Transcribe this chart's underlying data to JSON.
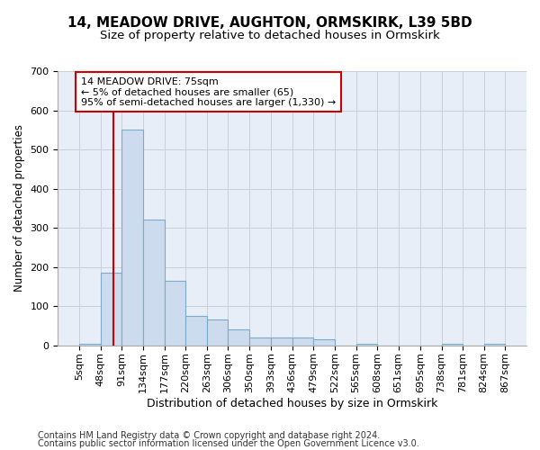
{
  "title1": "14, MEADOW DRIVE, AUGHTON, ORMSKIRK, L39 5BD",
  "title2": "Size of property relative to detached houses in Ormskirk",
  "xlabel": "Distribution of detached houses by size in Ormskirk",
  "ylabel": "Number of detached properties",
  "bin_edges": [
    5,
    48,
    91,
    134,
    177,
    220,
    263,
    306,
    350,
    393,
    436,
    479,
    522,
    565,
    608,
    651,
    695,
    738,
    781,
    824,
    867
  ],
  "bar_heights": [
    5,
    185,
    550,
    320,
    165,
    75,
    65,
    40,
    20,
    20,
    20,
    15,
    0,
    5,
    0,
    0,
    0,
    5,
    0,
    3
  ],
  "bar_color": "#ccdcee",
  "bar_edge_color": "#7aaac8",
  "property_size": 75,
  "vline_color": "#cc0000",
  "annotation_line1": "14 MEADOW DRIVE: 75sqm",
  "annotation_line2": "← 5% of detached houses are smaller (65)",
  "annotation_line3": "95% of semi-detached houses are larger (1,330) →",
  "annotation_box_color": "#ffffff",
  "annotation_box_edge": "#cc0000",
  "ylim": [
    0,
    700
  ],
  "yticks": [
    0,
    100,
    200,
    300,
    400,
    500,
    600,
    700
  ],
  "background_color": "#e8eef8",
  "footer_line1": "Contains HM Land Registry data © Crown copyright and database right 2024.",
  "footer_line2": "Contains public sector information licensed under the Open Government Licence v3.0.",
  "title1_fontsize": 11,
  "title2_fontsize": 9.5,
  "xlabel_fontsize": 9,
  "ylabel_fontsize": 8.5,
  "tick_fontsize": 8,
  "footer_fontsize": 7,
  "annot_fontsize": 8
}
